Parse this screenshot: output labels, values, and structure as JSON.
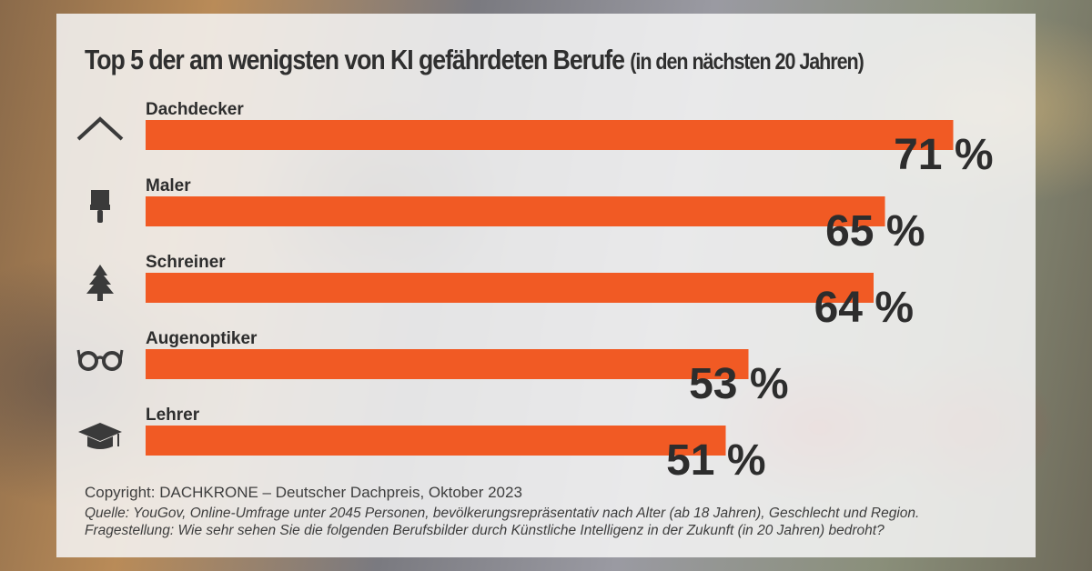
{
  "chart_data": {
    "type": "bar",
    "orientation": "horizontal",
    "title": "Top 5 der am wenigsten von KI gefährdeten Berufe",
    "subtitle": "(in den nächsten 20 Jahren)",
    "categories": [
      "Dachdecker",
      "Maler",
      "Schreiner",
      "Augenoptiker",
      "Lehrer"
    ],
    "values": [
      71,
      65,
      64,
      53,
      51
    ],
    "value_labels": [
      "71 %",
      "65 %",
      "64 %",
      "53 %",
      "51 %"
    ],
    "icons": [
      "roof-icon",
      "paintbrush-icon",
      "tree-icon",
      "glasses-icon",
      "graduation-cap-icon"
    ],
    "unit": "%",
    "xlim": [
      0,
      100
    ],
    "grid": false,
    "legend": "none",
    "bar_color": "#f15a24"
  },
  "footer": {
    "copyright": "Copyright: DACHKRONE – Deutscher Dachpreis, Oktober 2023",
    "source": "Quelle: YouGov, Online-Umfrage unter 2045 Personen, bevölkerungsrepräsentativ nach Alter (ab 18 Jahren), Geschlecht und Region.",
    "question": "Fragestellung: Wie sehr sehen Sie die folgenden Berufsbilder durch Künstliche Intelligenz in der Zukunft (in 20 Jahren) bedroht?"
  }
}
